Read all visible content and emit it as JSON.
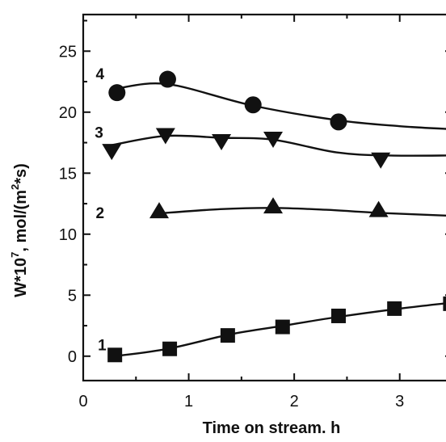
{
  "chart_data": {
    "type": "line",
    "xlabel": "Time on stream. h",
    "ylabel": "W*10^7, mol/(m^2*s)",
    "ylabel_parts": {
      "base": "W*10",
      "exp1": "7",
      "mid": ", mol/(m",
      "exp2": "2",
      "end": "*s)"
    },
    "xlim": [
      0,
      3.5
    ],
    "ylim": [
      -2,
      28
    ],
    "xticks": [
      0,
      1,
      2,
      3
    ],
    "yticks": [
      0,
      5,
      10,
      15,
      20,
      25
    ],
    "series": [
      {
        "name": "1",
        "marker": "square",
        "points": [
          [
            0.3,
            0.1
          ],
          [
            0.82,
            0.6
          ],
          [
            1.37,
            1.7
          ],
          [
            1.89,
            2.4
          ],
          [
            2.42,
            3.3
          ],
          [
            2.95,
            3.9
          ],
          [
            3.48,
            4.3
          ]
        ],
        "curve": [
          [
            0.3,
            0.0
          ],
          [
            0.8,
            0.6
          ],
          [
            1.4,
            1.8
          ],
          [
            1.9,
            2.5
          ],
          [
            2.4,
            3.2
          ],
          [
            3.0,
            3.9
          ],
          [
            3.5,
            4.4
          ]
        ]
      },
      {
        "name": "2",
        "marker": "triangle-up",
        "points": [
          [
            0.72,
            11.9
          ],
          [
            1.8,
            12.3
          ],
          [
            2.8,
            12.0
          ]
        ],
        "curve": [
          [
            0.72,
            11.7
          ],
          [
            1.3,
            12.05
          ],
          [
            1.8,
            12.15
          ],
          [
            2.3,
            12.0
          ],
          [
            2.8,
            11.75
          ],
          [
            3.5,
            11.5
          ]
        ]
      },
      {
        "name": "3",
        "marker": "triangle-down",
        "points": [
          [
            0.27,
            16.8
          ],
          [
            0.78,
            18.1
          ],
          [
            1.31,
            17.6
          ],
          [
            1.8,
            17.8
          ],
          [
            2.82,
            16.1
          ]
        ],
        "curve": [
          [
            0.27,
            17.3
          ],
          [
            0.78,
            18.05
          ],
          [
            1.31,
            17.9
          ],
          [
            1.8,
            17.75
          ],
          [
            2.4,
            16.7
          ],
          [
            2.9,
            16.45
          ],
          [
            3.5,
            16.45
          ]
        ]
      },
      {
        "name": "4",
        "marker": "circle",
        "points": [
          [
            0.32,
            21.6
          ],
          [
            0.8,
            22.7
          ],
          [
            1.61,
            20.6
          ],
          [
            2.42,
            19.2
          ]
        ],
        "curve": [
          [
            0.32,
            21.95
          ],
          [
            0.8,
            22.3
          ],
          [
            1.6,
            20.55
          ],
          [
            2.4,
            19.35
          ],
          [
            3.0,
            18.85
          ],
          [
            3.5,
            18.6
          ]
        ]
      }
    ]
  }
}
